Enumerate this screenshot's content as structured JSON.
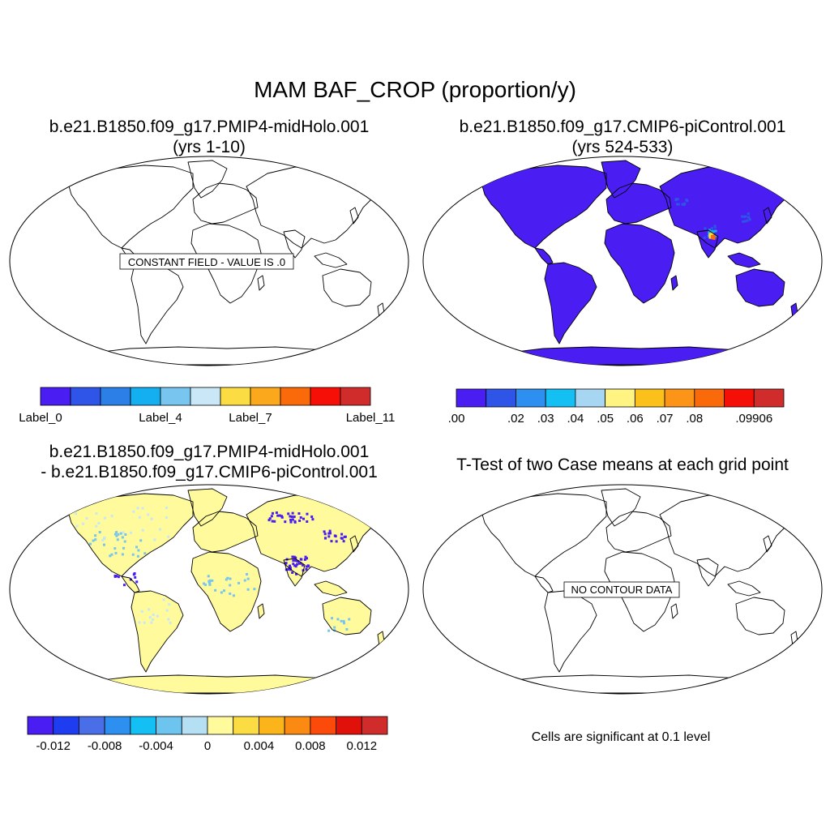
{
  "chart_data": [
    {
      "type": "map",
      "figure_title": "MAM BAF_CROP (proportion/y)",
      "title_line1": "b.e21.B1850.f09_g17.PMIP4-midHolo.001",
      "title_line2": "(yrs 1-10)",
      "message": "CONSTANT FIELD - VALUE IS .0",
      "field_value": 0.0,
      "colorbar": {
        "colors": [
          "#4a1ef2",
          "#2f55e8",
          "#2d7fe8",
          "#13aff0",
          "#78c6ef",
          "#c9e7f7",
          "#fbdc43",
          "#fba81c",
          "#fb6a0a",
          "#f60f07",
          "#d02c2c"
        ],
        "tick_labels": [
          {
            "text": "Label_0",
            "boundary": 0
          },
          {
            "text": "Label_4",
            "boundary": 4
          },
          {
            "text": "Label_7",
            "boundary": 7
          },
          {
            "text": "Label_11",
            "boundary": 11
          }
        ]
      }
    },
    {
      "type": "map",
      "title_line1": "b.e21.B1850.f09_g17.CMIP6-piControl.001",
      "title_line2": "(yrs 524-533)",
      "land_color": "#4a1ef2",
      "hotspot_colors": [
        "#2f55e8",
        "#13aff0",
        "#fbdc43",
        "#fb6a0a"
      ],
      "colorbar": {
        "colors": [
          "#4a1ef2",
          "#2f55e8",
          "#2d8ff0",
          "#13bff3",
          "#a6d6f2",
          "#fff382",
          "#fbc11a",
          "#fb9417",
          "#fb6a0a",
          "#f60f07",
          "#d02c2c"
        ],
        "tick_labels": [
          {
            "text": ".00",
            "boundary": 0
          },
          {
            "text": ".02",
            "boundary": 2
          },
          {
            "text": ".03",
            "boundary": 3
          },
          {
            "text": ".04",
            "boundary": 4
          },
          {
            "text": ".05",
            "boundary": 5
          },
          {
            "text": ".06",
            "boundary": 6
          },
          {
            "text": ".07",
            "boundary": 7
          },
          {
            "text": ".08",
            "boundary": 8
          },
          {
            "text": ".09906",
            "boundary": 10
          }
        ]
      }
    },
    {
      "type": "map",
      "title_line1": "b.e21.B1850.f09_g17.PMIP4-midHolo.001",
      "title_line2": "- b.e21.B1850.f09_g17.CMIP6-piControl.001",
      "land_color": "#fffa9c",
      "negative_colors": [
        "#4a1ef2",
        "#78c6ef",
        "#c9e7f7"
      ],
      "colorbar": {
        "colors": [
          "#4a1ef2",
          "#1f3df0",
          "#4a6ee8",
          "#2d8ff0",
          "#13bff3",
          "#6cc4ef",
          "#b5dff2",
          "#fffa9c",
          "#fbdc43",
          "#fbb419",
          "#fb8a12",
          "#fb4a0a",
          "#e0100a",
          "#d02c2c"
        ],
        "tick_labels": [
          {
            "text": "-0.012",
            "boundary": 1
          },
          {
            "text": "-0.008",
            "boundary": 3
          },
          {
            "text": "-0.004",
            "boundary": 5
          },
          {
            "text": "0",
            "boundary": 7
          },
          {
            "text": "0.004",
            "boundary": 9
          },
          {
            "text": "0.008",
            "boundary": 11
          },
          {
            "text": "0.012",
            "boundary": 13
          }
        ]
      }
    },
    {
      "type": "map",
      "title_line1": "T-Test of two Case means at each grid point",
      "message": "NO CONTOUR DATA",
      "note": "Cells are significant at 0.1 level"
    }
  ]
}
